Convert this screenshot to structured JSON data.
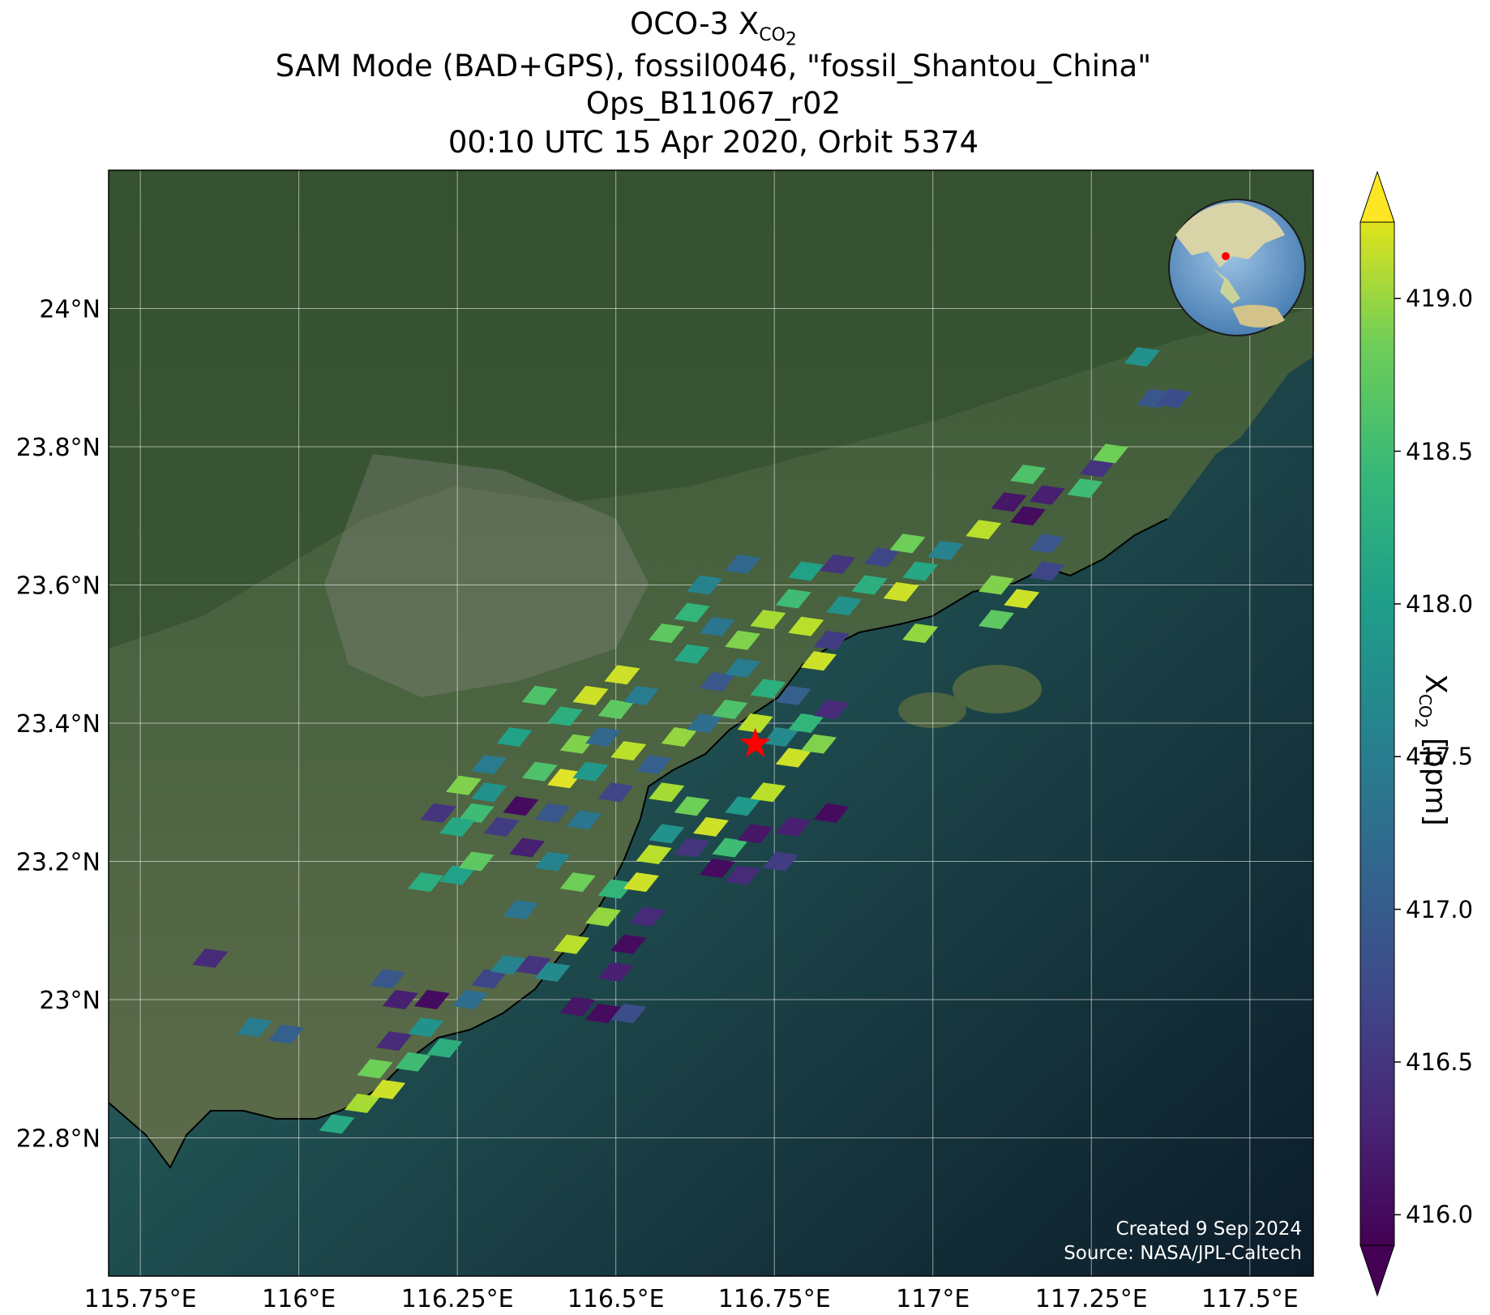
{
  "title": {
    "line1_prefix": "OCO-3 X",
    "line1_sub": "CO",
    "line1_subsub": "2",
    "line2": "SAM Mode (BAD+GPS), fossil0046, \"fossil_Shantou_China\"",
    "line3": "Ops_B11067_r02",
    "line4": "00:10 UTC 15 Apr 2020, Orbit 5374"
  },
  "credit": {
    "created": "Created 9 Sep 2024",
    "source": "Source: NASA/JPL-Caltech"
  },
  "axes": {
    "lon_ticks": [
      "115.75°E",
      "116°E",
      "116.25°E",
      "116.5°E",
      "116.75°E",
      "117°E",
      "117.25°E",
      "117.5°E"
    ],
    "lon_values": [
      115.75,
      116.0,
      116.25,
      116.5,
      116.75,
      117.0,
      117.25,
      117.5
    ],
    "lat_ticks": [
      "24°N",
      "23.8°N",
      "23.6°N",
      "23.4°N",
      "23.2°N",
      "23°N",
      "22.8°N"
    ],
    "lat_values": [
      24.0,
      23.8,
      23.6,
      23.4,
      23.2,
      23.0,
      22.8
    ],
    "lon_range": [
      115.7,
      117.6
    ],
    "lat_range": [
      22.6,
      24.2
    ],
    "grid": true
  },
  "colorbar": {
    "label_prefix": "X",
    "label_sub": "CO",
    "label_subsub": "2",
    "label_suffix": " [ppm]",
    "ticks": [
      "419.0",
      "418.5",
      "418.0",
      "417.5",
      "417.0",
      "416.5",
      "416.0"
    ],
    "tick_values": [
      419.0,
      418.5,
      418.0,
      417.5,
      417.0,
      416.5,
      416.0
    ],
    "range": [
      415.9,
      419.25
    ],
    "colormap": "viridis",
    "extend": "both"
  },
  "target": {
    "name": "fossil_Shantou_China",
    "lon": 116.72,
    "lat": 23.37,
    "marker_color": "#ff0000"
  },
  "colors": {
    "sea": "#0d1f2d",
    "coast_water": "#2e6b63",
    "land": "#3d5a35",
    "star": "#ff0000"
  },
  "chart_data": {
    "type": "heatmap",
    "units": "ppm",
    "soundings": [
      {
        "lon": 116.06,
        "lat": 22.82,
        "v": 417.9
      },
      {
        "lon": 116.1,
        "lat": 22.85,
        "v": 418.8
      },
      {
        "lon": 116.14,
        "lat": 22.87,
        "v": 419.0
      },
      {
        "lon": 116.12,
        "lat": 22.9,
        "v": 418.5
      },
      {
        "lon": 116.18,
        "lat": 22.91,
        "v": 418.2
      },
      {
        "lon": 116.15,
        "lat": 22.94,
        "v": 416.3
      },
      {
        "lon": 116.2,
        "lat": 22.96,
        "v": 417.6
      },
      {
        "lon": 116.23,
        "lat": 22.93,
        "v": 418.0
      },
      {
        "lon": 116.16,
        "lat": 23.0,
        "v": 416.2
      },
      {
        "lon": 116.21,
        "lat": 23.0,
        "v": 416.0
      },
      {
        "lon": 115.98,
        "lat": 22.95,
        "v": 416.9
      },
      {
        "lon": 115.93,
        "lat": 22.96,
        "v": 417.3
      },
      {
        "lon": 116.14,
        "lat": 23.03,
        "v": 416.8
      },
      {
        "lon": 116.27,
        "lat": 23.0,
        "v": 417.1
      },
      {
        "lon": 116.3,
        "lat": 23.03,
        "v": 416.6
      },
      {
        "lon": 116.33,
        "lat": 23.05,
        "v": 417.4
      },
      {
        "lon": 116.37,
        "lat": 23.05,
        "v": 416.4
      },
      {
        "lon": 116.4,
        "lat": 23.04,
        "v": 417.5
      },
      {
        "lon": 116.43,
        "lat": 23.08,
        "v": 418.9
      },
      {
        "lon": 116.35,
        "lat": 23.13,
        "v": 417.2
      },
      {
        "lon": 115.86,
        "lat": 23.06,
        "v": 416.3
      },
      {
        "lon": 116.2,
        "lat": 23.17,
        "v": 418.0
      },
      {
        "lon": 116.25,
        "lat": 23.18,
        "v": 417.8
      },
      {
        "lon": 116.28,
        "lat": 23.2,
        "v": 418.4
      },
      {
        "lon": 116.44,
        "lat": 22.99,
        "v": 416.1
      },
      {
        "lon": 116.48,
        "lat": 22.98,
        "v": 416.0
      },
      {
        "lon": 116.52,
        "lat": 22.98,
        "v": 416.7
      },
      {
        "lon": 116.5,
        "lat": 23.04,
        "v": 416.2
      },
      {
        "lon": 116.52,
        "lat": 23.08,
        "v": 416.0
      },
      {
        "lon": 116.55,
        "lat": 23.12,
        "v": 416.3
      },
      {
        "lon": 116.48,
        "lat": 23.12,
        "v": 418.7
      },
      {
        "lon": 116.5,
        "lat": 23.16,
        "v": 418.1
      },
      {
        "lon": 116.54,
        "lat": 23.17,
        "v": 419.0
      },
      {
        "lon": 116.56,
        "lat": 23.21,
        "v": 418.9
      },
      {
        "lon": 116.44,
        "lat": 23.17,
        "v": 418.5
      },
      {
        "lon": 116.4,
        "lat": 23.2,
        "v": 417.4
      },
      {
        "lon": 116.36,
        "lat": 23.22,
        "v": 416.2
      },
      {
        "lon": 116.32,
        "lat": 23.25,
        "v": 416.5
      },
      {
        "lon": 116.28,
        "lat": 23.27,
        "v": 418.2
      },
      {
        "lon": 116.25,
        "lat": 23.25,
        "v": 417.9
      },
      {
        "lon": 116.22,
        "lat": 23.27,
        "v": 416.4
      },
      {
        "lon": 116.3,
        "lat": 23.3,
        "v": 417.6
      },
      {
        "lon": 116.35,
        "lat": 23.28,
        "v": 416.0
      },
      {
        "lon": 116.4,
        "lat": 23.27,
        "v": 416.8
      },
      {
        "lon": 116.45,
        "lat": 23.26,
        "v": 417.2
      },
      {
        "lon": 116.38,
        "lat": 23.33,
        "v": 418.3
      },
      {
        "lon": 116.42,
        "lat": 23.32,
        "v": 419.1
      },
      {
        "lon": 116.46,
        "lat": 23.33,
        "v": 417.7
      },
      {
        "lon": 116.5,
        "lat": 23.3,
        "v": 416.6
      },
      {
        "lon": 116.44,
        "lat": 23.37,
        "v": 418.6
      },
      {
        "lon": 116.48,
        "lat": 23.38,
        "v": 417.0
      },
      {
        "lon": 116.52,
        "lat": 23.36,
        "v": 418.9
      },
      {
        "lon": 116.56,
        "lat": 23.34,
        "v": 416.9
      },
      {
        "lon": 116.5,
        "lat": 23.42,
        "v": 418.4
      },
      {
        "lon": 116.54,
        "lat": 23.44,
        "v": 417.3
      },
      {
        "lon": 116.51,
        "lat": 23.47,
        "v": 419.0
      },
      {
        "lon": 116.58,
        "lat": 23.3,
        "v": 418.8
      },
      {
        "lon": 116.62,
        "lat": 23.28,
        "v": 418.5
      },
      {
        "lon": 116.65,
        "lat": 23.25,
        "v": 419.0
      },
      {
        "lon": 116.68,
        "lat": 23.22,
        "v": 418.2
      },
      {
        "lon": 116.72,
        "lat": 23.24,
        "v": 416.1
      },
      {
        "lon": 116.7,
        "lat": 23.28,
        "v": 417.7
      },
      {
        "lon": 116.74,
        "lat": 23.3,
        "v": 418.9
      },
      {
        "lon": 116.62,
        "lat": 23.22,
        "v": 416.4
      },
      {
        "lon": 116.58,
        "lat": 23.24,
        "v": 417.6
      },
      {
        "lon": 116.66,
        "lat": 23.19,
        "v": 416.0
      },
      {
        "lon": 116.7,
        "lat": 23.18,
        "v": 416.3
      },
      {
        "lon": 116.76,
        "lat": 23.2,
        "v": 416.5
      },
      {
        "lon": 116.78,
        "lat": 23.25,
        "v": 416.2
      },
      {
        "lon": 116.6,
        "lat": 23.38,
        "v": 418.7
      },
      {
        "lon": 116.64,
        "lat": 23.4,
        "v": 417.1
      },
      {
        "lon": 116.68,
        "lat": 23.42,
        "v": 418.3
      },
      {
        "lon": 116.72,
        "lat": 23.4,
        "v": 418.9
      },
      {
        "lon": 116.76,
        "lat": 23.38,
        "v": 417.5
      },
      {
        "lon": 116.8,
        "lat": 23.4,
        "v": 418.1
      },
      {
        "lon": 116.78,
        "lat": 23.35,
        "v": 419.0
      },
      {
        "lon": 116.82,
        "lat": 23.37,
        "v": 418.6
      },
      {
        "lon": 116.66,
        "lat": 23.46,
        "v": 416.8
      },
      {
        "lon": 116.7,
        "lat": 23.48,
        "v": 417.3
      },
      {
        "lon": 116.74,
        "lat": 23.45,
        "v": 418.0
      },
      {
        "lon": 116.78,
        "lat": 23.44,
        "v": 416.9
      },
      {
        "lon": 116.62,
        "lat": 23.5,
        "v": 417.9
      },
      {
        "lon": 116.58,
        "lat": 23.53,
        "v": 418.4
      },
      {
        "lon": 116.62,
        "lat": 23.56,
        "v": 418.1
      },
      {
        "lon": 116.66,
        "lat": 23.54,
        "v": 417.2
      },
      {
        "lon": 116.7,
        "lat": 23.52,
        "v": 418.6
      },
      {
        "lon": 116.74,
        "lat": 23.55,
        "v": 418.8
      },
      {
        "lon": 116.64,
        "lat": 23.6,
        "v": 417.4
      },
      {
        "lon": 116.7,
        "lat": 23.63,
        "v": 417.0
      },
      {
        "lon": 116.78,
        "lat": 23.58,
        "v": 418.2
      },
      {
        "lon": 116.8,
        "lat": 23.62,
        "v": 417.8
      },
      {
        "lon": 116.85,
        "lat": 23.63,
        "v": 416.4
      },
      {
        "lon": 116.8,
        "lat": 23.54,
        "v": 418.9
      },
      {
        "lon": 116.84,
        "lat": 23.52,
        "v": 416.5
      },
      {
        "lon": 116.82,
        "lat": 23.49,
        "v": 419.0
      },
      {
        "lon": 116.86,
        "lat": 23.57,
        "v": 417.6
      },
      {
        "lon": 116.9,
        "lat": 23.6,
        "v": 418.0
      },
      {
        "lon": 116.92,
        "lat": 23.64,
        "v": 416.6
      },
      {
        "lon": 116.96,
        "lat": 23.66,
        "v": 418.5
      },
      {
        "lon": 116.98,
        "lat": 23.62,
        "v": 417.9
      },
      {
        "lon": 116.95,
        "lat": 23.59,
        "v": 419.0
      },
      {
        "lon": 117.02,
        "lat": 23.65,
        "v": 417.4
      },
      {
        "lon": 116.98,
        "lat": 23.53,
        "v": 418.7
      },
      {
        "lon": 116.84,
        "lat": 23.42,
        "v": 416.3
      },
      {
        "lon": 116.84,
        "lat": 23.27,
        "v": 416.0
      },
      {
        "lon": 117.08,
        "lat": 23.68,
        "v": 418.9
      },
      {
        "lon": 117.12,
        "lat": 23.72,
        "v": 416.1
      },
      {
        "lon": 117.15,
        "lat": 23.7,
        "v": 416.0
      },
      {
        "lon": 117.15,
        "lat": 23.76,
        "v": 418.3
      },
      {
        "lon": 117.18,
        "lat": 23.73,
        "v": 416.2
      },
      {
        "lon": 117.1,
        "lat": 23.6,
        "v": 418.6
      },
      {
        "lon": 117.14,
        "lat": 23.58,
        "v": 419.0
      },
      {
        "lon": 117.18,
        "lat": 23.62,
        "v": 416.6
      },
      {
        "lon": 117.1,
        "lat": 23.55,
        "v": 418.4
      },
      {
        "lon": 117.18,
        "lat": 23.66,
        "v": 416.8
      },
      {
        "lon": 117.24,
        "lat": 23.74,
        "v": 418.2
      },
      {
        "lon": 117.26,
        "lat": 23.77,
        "v": 416.4
      },
      {
        "lon": 117.28,
        "lat": 23.79,
        "v": 418.5
      },
      {
        "lon": 117.33,
        "lat": 23.93,
        "v": 417.6
      },
      {
        "lon": 117.35,
        "lat": 23.87,
        "v": 416.8
      },
      {
        "lon": 117.38,
        "lat": 23.87,
        "v": 416.7
      },
      {
        "lon": 116.38,
        "lat": 23.44,
        "v": 418.3
      },
      {
        "lon": 116.42,
        "lat": 23.41,
        "v": 418.0
      },
      {
        "lon": 116.46,
        "lat": 23.44,
        "v": 419.0
      },
      {
        "lon": 116.34,
        "lat": 23.38,
        "v": 417.8
      },
      {
        "lon": 116.3,
        "lat": 23.34,
        "v": 417.3
      },
      {
        "lon": 116.26,
        "lat": 23.31,
        "v": 418.6
      }
    ]
  }
}
